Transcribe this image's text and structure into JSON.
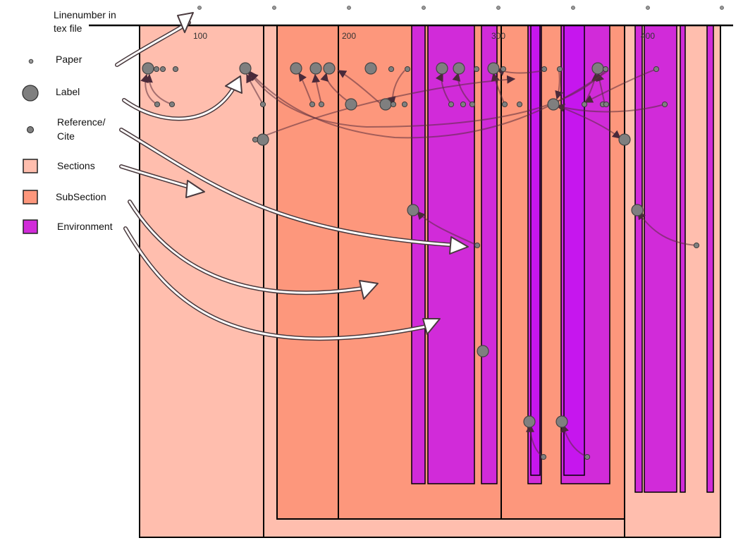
{
  "axis": {
    "title_line1": "Linenumber in",
    "title_line2": "tex file",
    "ticks": [
      "100",
      "200",
      "300",
      "400"
    ]
  },
  "legend": {
    "paper": "Paper",
    "label": "Label",
    "reference_line1": "Reference/",
    "reference_line2": "Cite",
    "sections": "Sections",
    "subsection": "SubSection",
    "environment": "Environment"
  },
  "colors": {
    "section": "#ffbeae",
    "subsection": "#fd977c",
    "environment": "#d12bd9",
    "environment_dark": "#c616ee",
    "node": "#7f7f7f",
    "edge": "#5a2e3c"
  }
}
